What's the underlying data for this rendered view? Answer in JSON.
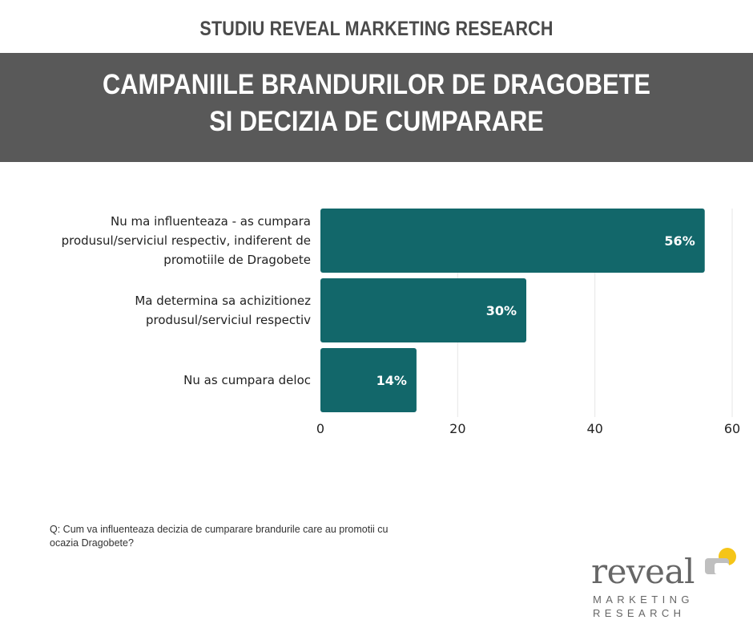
{
  "header": {
    "study_title": "STUDIU REVEAL MARKETING RESEARCH",
    "banner_line1": "CAMPANIILE BRANDURILOR DE DRAGOBETE",
    "banner_line2": "SI DECIZIA DE CUMPARARE",
    "banner_color": "#595959"
  },
  "chart_data": {
    "type": "bar",
    "orientation": "horizontal",
    "categories": [
      "Nu ma influenteaza - as cumpara produsul/serviciul respectiv, indiferent de promotiile de Dragobete",
      "Ma determina sa achizitionez produsul/serviciul respectiv",
      "Nu as cumpara deloc"
    ],
    "values": [
      56,
      30,
      14
    ],
    "data_labels": [
      "56%",
      "30%",
      "14%"
    ],
    "xlim": [
      0,
      60
    ],
    "x_ticks": [
      "0",
      "20",
      "40",
      "60"
    ],
    "bar_color": "#12676A",
    "grid": true,
    "title": "",
    "xlabel": "",
    "ylabel": ""
  },
  "categories_display": [
    [
      "Nu ma influenteaza - as cumpara",
      "produsul/serviciul respectiv, indiferent de",
      "promotiile de Dragobete"
    ],
    [
      "Ma determina sa achizitionez",
      "produsul/serviciul respectiv"
    ],
    [
      "Nu as cumpara deloc"
    ]
  ],
  "footer": {
    "question_line1": "Q: Cum va influenteaza decizia de cumparare brandurile care au promotii cu",
    "question_line2": "ocazia Dragobete?"
  },
  "logo": {
    "word": "reveal",
    "sub1": "MARKETING",
    "sub2": "RESEARCH",
    "accent_color": "#F5C518",
    "shape_color": "#BFBFBF"
  }
}
